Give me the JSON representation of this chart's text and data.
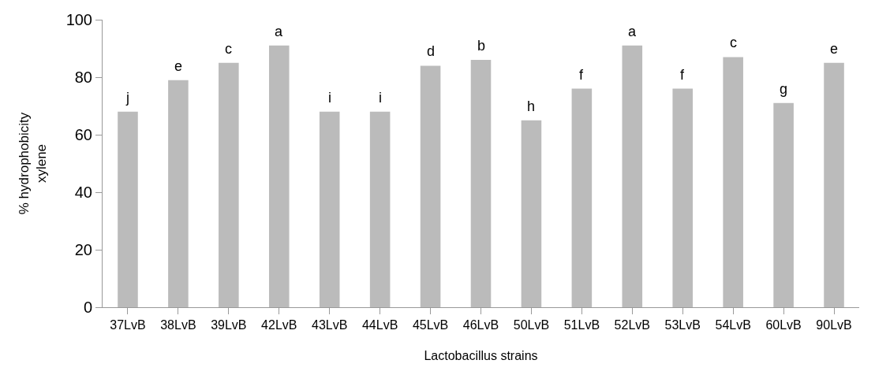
{
  "chart_data": {
    "type": "bar",
    "xlabel": "Lactobacillus strains",
    "ylabel": "% hydrophobicity\nxylene",
    "categories": [
      "37LvB",
      "38LvB",
      "39LvB",
      "42LvB",
      "43LvB",
      "44LvB",
      "45LvB",
      "46LvB",
      "50LvB",
      "51LvB",
      "52LvB",
      "53LvB",
      "54LvB",
      "60LvB",
      "90LvB"
    ],
    "values": [
      68,
      79,
      85,
      91,
      68,
      68,
      84,
      86,
      65,
      76,
      91,
      76,
      87,
      71,
      85
    ],
    "color": "#bbbbbb",
    "ylim": [
      0,
      100
    ],
    "yticks": [
      0,
      20,
      40,
      60,
      80,
      100
    ],
    "grid": false,
    "annotations": [
      {
        "text": "j",
        "x": "37LvB",
        "y": 68
      },
      {
        "text": "e",
        "x": "38LvB",
        "y": 79
      },
      {
        "text": "c",
        "x": "39LvB",
        "y": 85
      },
      {
        "text": "a",
        "x": "42LvB",
        "y": 91
      },
      {
        "text": "i",
        "x": "43LvB",
        "y": 68
      },
      {
        "text": "i",
        "x": "44LvB",
        "y": 68
      },
      {
        "text": "d",
        "x": "45LvB",
        "y": 84
      },
      {
        "text": "b",
        "x": "46LvB",
        "y": 86
      },
      {
        "text": "h",
        "x": "50LvB",
        "y": 65
      },
      {
        "text": "f",
        "x": "51LvB",
        "y": 76
      },
      {
        "text": "a",
        "x": "52LvB",
        "y": 91
      },
      {
        "text": "f",
        "x": "53LvB",
        "y": 76
      },
      {
        "text": "c",
        "x": "54LvB",
        "y": 87
      },
      {
        "text": "g",
        "x": "60LvB",
        "y": 71
      },
      {
        "text": "e",
        "x": "90LvB",
        "y": 85
      }
    ]
  }
}
